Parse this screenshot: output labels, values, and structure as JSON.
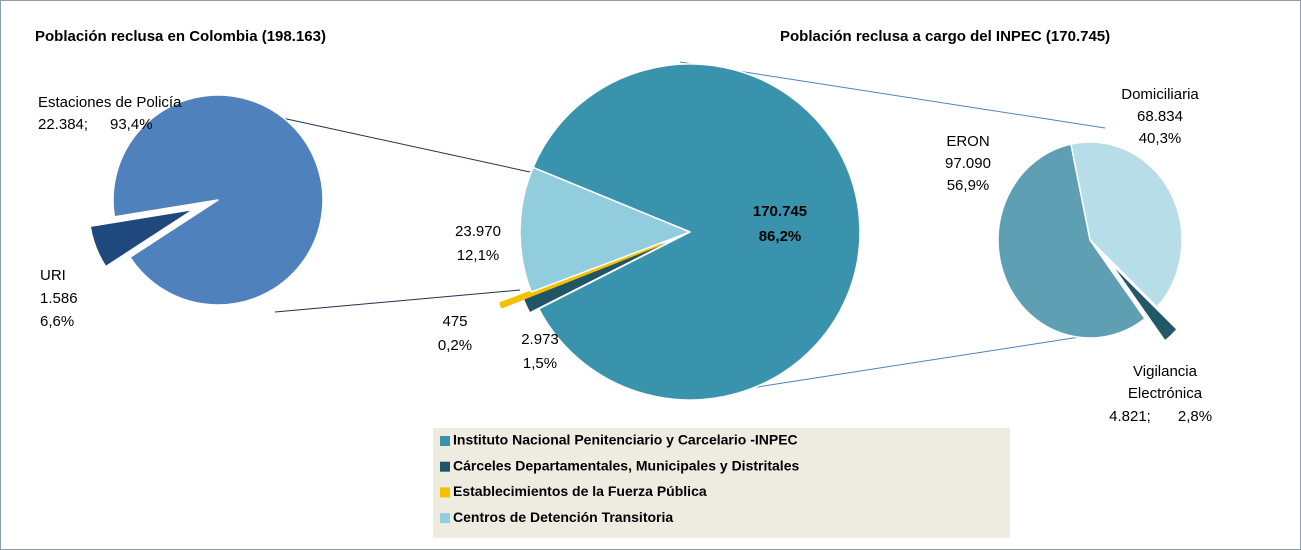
{
  "chart_data": [
    {
      "type": "pie",
      "categories": [
        "Estaciones de Policía",
        "URI"
      ],
      "values": [
        22384,
        1586
      ],
      "value_labels": [
        "22.384;",
        "1.586"
      ],
      "percentages": [
        93.4,
        6.6
      ],
      "percentage_labels": [
        "93,4%",
        "6,6%"
      ],
      "colors": [
        "#4f81bd",
        "#1f497d"
      ]
    },
    {
      "type": "pie",
      "title": "Población reclusa en Colombia (198.163)",
      "categories": [
        "Instituto Nacional Penitenciario y Carcelario -INPEC",
        "Cárceles Departamentales, Municipales y Distritales",
        "Establecimientos de la Fuerza Pública",
        "Centros de Detención Transitoria"
      ],
      "values": [
        170745,
        2973,
        475,
        23970
      ],
      "value_labels": [
        "170.745",
        "2.973",
        "475",
        "23.970"
      ],
      "percentages": [
        86.2,
        1.5,
        0.2,
        12.1
      ],
      "percentage_labels": [
        "86,2%",
        "1,5%",
        "0,2%",
        "12,1%"
      ],
      "colors": [
        "#3a93ad",
        "#1f5566",
        "#f5c000",
        "#92cddd"
      ],
      "legend": true
    },
    {
      "type": "pie",
      "title": "Población reclusa a cargo del INPEC (170.745)",
      "categories": [
        "Domiciliaria",
        "Vigilancia Electrónica",
        "ERON"
      ],
      "values": [
        68834,
        4821,
        97090
      ],
      "value_labels": [
        "68.834",
        "4.821;",
        "97.090"
      ],
      "percentages": [
        40.3,
        2.8,
        56.9
      ],
      "percentage_labels": [
        "40,3%",
        "2,8%",
        "56,9%"
      ],
      "colors": [
        "#b7dde8",
        "#215968",
        "#5e9fb3"
      ]
    }
  ]
}
